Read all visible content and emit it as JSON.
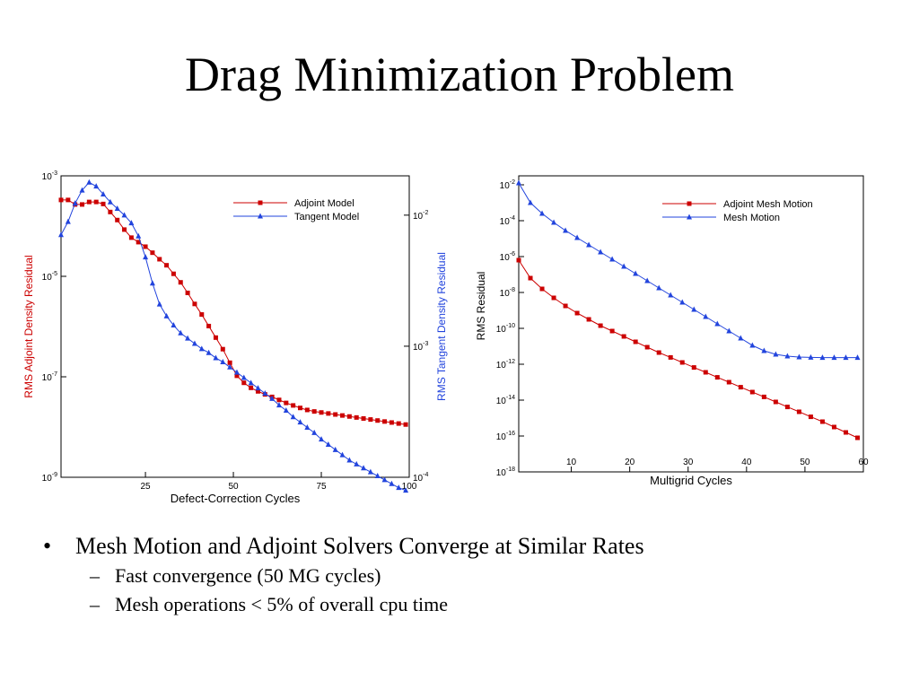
{
  "slide": {
    "title": "Drag Minimization Problem",
    "bullet": "Mesh Motion and Adjoint Solvers Converge at Similar Rates",
    "bullet_mark": "•",
    "sub_mark": "–",
    "sub_bullets": [
      "Fast convergence (50 MG cycles)",
      "Mesh operations < 5% of overall cpu time"
    ]
  },
  "chart_data": [
    {
      "type": "line",
      "xlabel": "Defect-Correction Cycles",
      "ylabel_left": "RMS Adjoint Density Residual",
      "ylabel_right": "RMS Tangent Density Residual",
      "xlim": [
        1,
        100
      ],
      "x_ticks": [
        "25",
        "50",
        "75",
        "100"
      ],
      "x_tick_values": [
        25,
        50,
        75,
        100
      ],
      "yleft_scale": "log",
      "yleft_range_exp": [
        -9,
        -3
      ],
      "yleft_ticks": [
        {
          "base": "10",
          "exp": "-3"
        },
        {
          "base": "10",
          "exp": "-5"
        },
        {
          "base": "10",
          "exp": "-7"
        },
        {
          "base": "10",
          "exp": "-9"
        }
      ],
      "yleft_tick_exps": [
        -3,
        -5,
        -7,
        -9
      ],
      "yright_scale": "log",
      "yright_range_exp": [
        -4,
        -1.7
      ],
      "yright_ticks": [
        {
          "base": "10",
          "exp": "-2"
        },
        {
          "base": "10",
          "exp": "-3"
        },
        {
          "base": "10",
          "exp": "-4"
        }
      ],
      "yright_tick_exps": [
        -2,
        -3,
        -4
      ],
      "legend": "top-right",
      "series": [
        {
          "name": "Adjoint Model",
          "color": "#cc0000",
          "marker": "square",
          "axis": "left",
          "x": [
            1,
            3,
            5,
            7,
            9,
            11,
            13,
            15,
            17,
            19,
            21,
            23,
            25,
            27,
            29,
            31,
            33,
            35,
            37,
            39,
            41,
            43,
            45,
            47,
            49,
            51,
            53,
            55,
            57,
            59,
            61,
            63,
            65,
            67,
            69,
            71,
            73,
            75,
            77,
            79,
            81,
            83,
            85,
            87,
            89,
            91,
            93,
            95,
            97,
            99
          ],
          "log10_y": [
            -3.48,
            -3.48,
            -3.57,
            -3.57,
            -3.52,
            -3.52,
            -3.56,
            -3.72,
            -3.88,
            -4.07,
            -4.23,
            -4.32,
            -4.41,
            -4.53,
            -4.66,
            -4.78,
            -4.95,
            -5.12,
            -5.33,
            -5.55,
            -5.76,
            -5.99,
            -6.22,
            -6.45,
            -6.72,
            -6.98,
            -7.12,
            -7.22,
            -7.29,
            -7.35,
            -7.4,
            -7.46,
            -7.52,
            -7.57,
            -7.62,
            -7.66,
            -7.69,
            -7.71,
            -7.73,
            -7.75,
            -7.77,
            -7.79,
            -7.81,
            -7.83,
            -7.85,
            -7.87,
            -7.89,
            -7.91,
            -7.93,
            -7.95
          ]
        },
        {
          "name": "Tangent Model",
          "color": "#2244dd",
          "marker": "triangle",
          "axis": "right",
          "x": [
            1,
            3,
            5,
            7,
            9,
            11,
            13,
            15,
            17,
            19,
            21,
            23,
            25,
            27,
            29,
            31,
            33,
            35,
            37,
            39,
            41,
            43,
            45,
            47,
            49,
            51,
            53,
            55,
            57,
            59,
            61,
            63,
            65,
            67,
            69,
            71,
            73,
            75,
            77,
            79,
            81,
            83,
            85,
            87,
            89,
            91,
            93,
            95,
            97,
            99
          ],
          "log10_y": [
            -2.15,
            -2.05,
            -1.91,
            -1.81,
            -1.75,
            -1.78,
            -1.84,
            -1.9,
            -1.95,
            -2.0,
            -2.06,
            -2.16,
            -2.32,
            -2.52,
            -2.68,
            -2.77,
            -2.84,
            -2.9,
            -2.94,
            -2.98,
            -3.02,
            -3.05,
            -3.09,
            -3.12,
            -3.16,
            -3.2,
            -3.24,
            -3.28,
            -3.32,
            -3.36,
            -3.4,
            -3.45,
            -3.49,
            -3.54,
            -3.58,
            -3.62,
            -3.66,
            -3.71,
            -3.75,
            -3.79,
            -3.83,
            -3.87,
            -3.9,
            -3.93,
            -3.96,
            -3.99,
            -4.02,
            -4.05,
            -4.08,
            -4.1
          ]
        }
      ]
    },
    {
      "type": "line",
      "xlabel": "Multigrid Cycles",
      "ylabel": "RMS Residual",
      "xlim": [
        1,
        60
      ],
      "x_ticks": [
        "10",
        "20",
        "30",
        "40",
        "50",
        "60"
      ],
      "x_tick_values": [
        10,
        20,
        30,
        40,
        50,
        60
      ],
      "y_scale": "log",
      "y_range_exp": [
        -18,
        -1.5
      ],
      "y_ticks": [
        {
          "base": "10",
          "exp": "-2"
        },
        {
          "base": "10",
          "exp": "-4"
        },
        {
          "base": "10",
          "exp": "-6"
        },
        {
          "base": "10",
          "exp": "-8"
        },
        {
          "base": "10",
          "exp": "-10"
        },
        {
          "base": "10",
          "exp": "-12"
        },
        {
          "base": "10",
          "exp": "-14"
        },
        {
          "base": "10",
          "exp": "-16"
        },
        {
          "base": "10",
          "exp": "-18"
        }
      ],
      "y_tick_exps": [
        -2,
        -4,
        -6,
        -8,
        -10,
        -12,
        -14,
        -16,
        -18
      ],
      "legend": "top-right",
      "series": [
        {
          "name": "Adjoint Mesh Motion",
          "color": "#cc0000",
          "marker": "square",
          "x": [
            1,
            3,
            5,
            7,
            9,
            11,
            13,
            15,
            17,
            19,
            21,
            23,
            25,
            27,
            29,
            31,
            33,
            35,
            37,
            39,
            41,
            43,
            45,
            47,
            49,
            51,
            53,
            55,
            57,
            59
          ],
          "log10_y": [
            -6.2,
            -7.2,
            -7.8,
            -8.3,
            -8.75,
            -9.15,
            -9.5,
            -9.85,
            -10.15,
            -10.45,
            -10.75,
            -11.05,
            -11.35,
            -11.62,
            -11.9,
            -12.18,
            -12.45,
            -12.73,
            -13.0,
            -13.28,
            -13.55,
            -13.82,
            -14.1,
            -14.38,
            -14.65,
            -14.93,
            -15.2,
            -15.5,
            -15.8,
            -16.1
          ]
        },
        {
          "name": "Mesh Motion",
          "color": "#2244dd",
          "marker": "triangle",
          "x": [
            1,
            3,
            5,
            7,
            9,
            11,
            13,
            15,
            17,
            19,
            21,
            23,
            25,
            27,
            29,
            31,
            33,
            35,
            37,
            39,
            41,
            43,
            45,
            47,
            49,
            51,
            53,
            55,
            57,
            59
          ],
          "log10_y": [
            -1.9,
            -3.0,
            -3.6,
            -4.1,
            -4.55,
            -4.95,
            -5.35,
            -5.75,
            -6.15,
            -6.55,
            -6.95,
            -7.35,
            -7.75,
            -8.15,
            -8.55,
            -8.95,
            -9.35,
            -9.75,
            -10.15,
            -10.55,
            -10.95,
            -11.25,
            -11.45,
            -11.55,
            -11.6,
            -11.62,
            -11.63,
            -11.63,
            -11.63,
            -11.63
          ]
        }
      ]
    }
  ]
}
